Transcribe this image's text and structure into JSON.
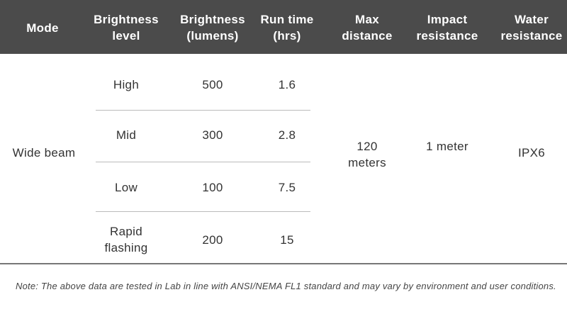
{
  "table": {
    "header": [
      "Mode",
      "Brightness level",
      "Brightness (lumens)",
      "Run time (hrs)",
      "Max distance",
      "Impact resistance",
      "Water resistance"
    ],
    "mode": "Wide beam",
    "rows": [
      [
        "High",
        "500",
        "1.6"
      ],
      [
        "Mid",
        "300",
        "2.8"
      ],
      [
        "Low",
        "100",
        "7.5"
      ],
      [
        "Rapid flashing",
        "200",
        "15"
      ]
    ],
    "max_distance": "120 meters",
    "impact_resistance": "1 meter",
    "water_resistance": "IPX6"
  },
  "note": "Note: The above data are tested in Lab in line with ANSI/NEMA FL1 standard and may vary by environment and user conditions."
}
